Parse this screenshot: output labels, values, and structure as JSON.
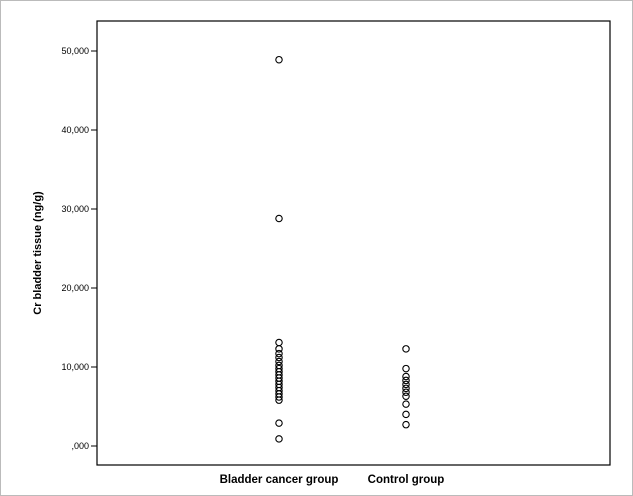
{
  "chart_data": {
    "type": "scatter",
    "title": "",
    "xlabel": "",
    "ylabel": "Cr bladder tissue (ng/g)",
    "ylim": [
      -1500,
      51000
    ],
    "yticks": [
      0,
      10000,
      20000,
      30000,
      40000,
      50000
    ],
    "ytick_labels": [
      ",000",
      "10,000",
      "20,000",
      "30,000",
      "40,000",
      "50,000"
    ],
    "categories": [
      "Bladder cancer group",
      "Control group"
    ],
    "grid": false,
    "legend": "none",
    "series": [
      {
        "values": [
          [
            0,
            48900
          ],
          [
            0,
            28800
          ],
          [
            0,
            13100
          ],
          [
            0,
            12300
          ],
          [
            0,
            11700
          ],
          [
            0,
            11200
          ],
          [
            0,
            10700
          ],
          [
            0,
            10200
          ],
          [
            0,
            9800
          ],
          [
            0,
            9400
          ],
          [
            0,
            9000
          ],
          [
            0,
            8600
          ],
          [
            0,
            8200
          ],
          [
            0,
            7800
          ],
          [
            0,
            7400
          ],
          [
            0,
            7000
          ],
          [
            0,
            6600
          ],
          [
            0,
            6200
          ],
          [
            0,
            5800
          ],
          [
            0,
            2900
          ],
          [
            0,
            900
          ],
          [
            1,
            12300
          ],
          [
            1,
            9800
          ],
          [
            1,
            8800
          ],
          [
            1,
            8300
          ],
          [
            1,
            7800
          ],
          [
            1,
            7300
          ],
          [
            1,
            6800
          ],
          [
            1,
            6300
          ],
          [
            1,
            5300
          ],
          [
            1,
            4000
          ],
          [
            1,
            2700
          ]
        ]
      }
    ],
    "colors": {
      "marker": "#000000",
      "background": "#ffffff",
      "frame": "#000000"
    }
  }
}
